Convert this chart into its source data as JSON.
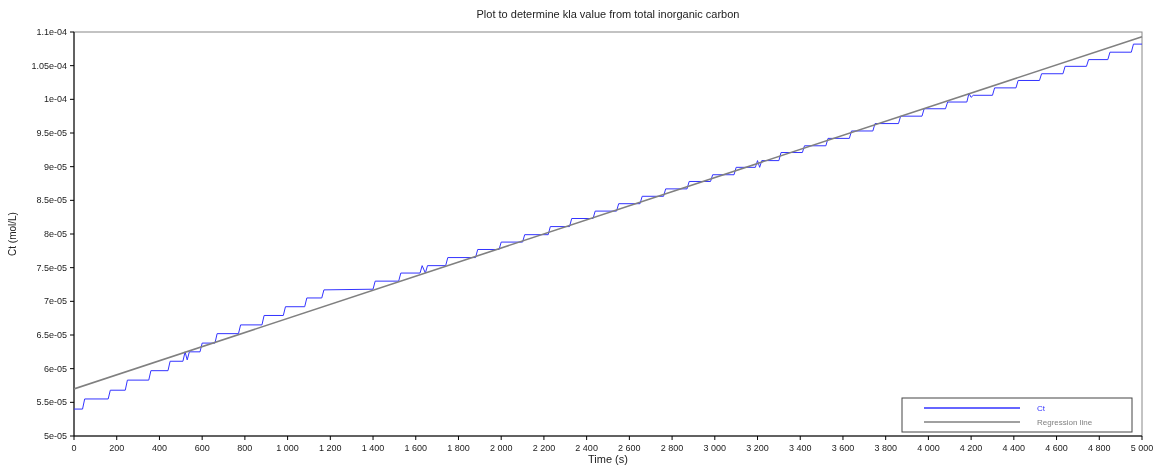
{
  "chart_data": {
    "type": "line",
    "title": "Plot to determine kla value from total inorganic carbon",
    "xlabel": "Time (s)",
    "ylabel": "Ct (mol/L)",
    "xlim": [
      0,
      5000
    ],
    "ylim": [
      5e-05,
      0.00011
    ],
    "xticks": [
      0,
      200,
      400,
      600,
      800,
      {
        "value": 1000,
        "label": "1 000"
      },
      {
        "value": 1200,
        "label": "1 200"
      },
      {
        "value": 1400,
        "label": "1 400"
      },
      {
        "value": 1600,
        "label": "1 600"
      },
      {
        "value": 1800,
        "label": "1 800"
      },
      {
        "value": 2000,
        "label": "2 000"
      },
      {
        "value": 2200,
        "label": "2 200"
      },
      {
        "value": 2400,
        "label": "2 400"
      },
      {
        "value": 2600,
        "label": "2 600"
      },
      {
        "value": 2800,
        "label": "2 800"
      },
      {
        "value": 3000,
        "label": "3 000"
      },
      {
        "value": 3200,
        "label": "3 200"
      },
      {
        "value": 3400,
        "label": "3 400"
      },
      {
        "value": 3600,
        "label": "3 600"
      },
      {
        "value": 3800,
        "label": "3 800"
      },
      {
        "value": 4000,
        "label": "4 000"
      },
      {
        "value": 4200,
        "label": "4 200"
      },
      {
        "value": 4400,
        "label": "4 400"
      },
      {
        "value": 4600,
        "label": "4 600"
      },
      {
        "value": 4800,
        "label": "4 800"
      },
      {
        "value": 5000,
        "label": "5 000"
      }
    ],
    "yticks": [
      {
        "value": 5e-05,
        "label": "5e-05"
      },
      {
        "value": 5.5e-05,
        "label": "5.5e-05"
      },
      {
        "value": 6e-05,
        "label": "6e-05"
      },
      {
        "value": 6.5e-05,
        "label": "6.5e-05"
      },
      {
        "value": 7e-05,
        "label": "7e-05"
      },
      {
        "value": 7.5e-05,
        "label": "7.5e-05"
      },
      {
        "value": 8e-05,
        "label": "8e-05"
      },
      {
        "value": 8.5e-05,
        "label": "8.5e-05"
      },
      {
        "value": 9e-05,
        "label": "9e-05"
      },
      {
        "value": 9.5e-05,
        "label": "9.5e-05"
      },
      {
        "value": 0.0001,
        "label": "1e-04"
      },
      {
        "value": 0.000105,
        "label": "1.05e-04"
      },
      {
        "value": 0.00011,
        "label": "1.1e-04"
      }
    ],
    "legend": "bottom right",
    "grid": false,
    "series": [
      {
        "name": "Ct",
        "color": "#3333ff",
        "x": [
          0,
          40,
          50,
          160,
          170,
          240,
          250,
          350,
          360,
          440,
          450,
          510,
          520,
          530,
          540,
          590,
          600,
          660,
          670,
          770,
          780,
          880,
          890,
          980,
          990,
          1080,
          1090,
          1160,
          1170,
          1400,
          1410,
          1520,
          1530,
          1620,
          1630,
          1645,
          1655,
          1740,
          1750,
          1880,
          1890,
          1990,
          2000,
          2100,
          2110,
          2220,
          2230,
          2320,
          2330,
          2430,
          2440,
          2540,
          2550,
          2650,
          2660,
          2760,
          2770,
          2870,
          2880,
          2980,
          2990,
          3090,
          3100,
          3190,
          3200,
          3210,
          3220,
          3300,
          3310,
          3410,
          3420,
          3520,
          3530,
          3630,
          3640,
          3740,
          3750,
          3860,
          3870,
          3970,
          3980,
          4080,
          4090,
          4180,
          4190,
          4200,
          4210,
          4300,
          4310,
          4410,
          4420,
          4520,
          4530,
          4630,
          4640,
          4740,
          4750,
          4840,
          4850,
          4950,
          4960,
          5000
        ],
        "values": [
          5.4e-05,
          5.4e-05,
          5.55e-05,
          5.55e-05,
          5.68e-05,
          5.68e-05,
          5.83e-05,
          5.83e-05,
          5.97e-05,
          5.97e-05,
          6.11e-05,
          6.11e-05,
          6.25e-05,
          6.13e-05,
          6.25e-05,
          6.25e-05,
          6.38e-05,
          6.38e-05,
          6.52e-05,
          6.52e-05,
          6.65e-05,
          6.65e-05,
          6.79e-05,
          6.79e-05,
          6.92e-05,
          6.92e-05,
          7.05e-05,
          7.05e-05,
          7.17e-05,
          7.18e-05,
          7.3e-05,
          7.3e-05,
          7.42e-05,
          7.42e-05,
          7.53e-05,
          7.42e-05,
          7.53e-05,
          7.53e-05,
          7.65e-05,
          7.65e-05,
          7.77e-05,
          7.77e-05,
          7.88e-05,
          7.88e-05,
          7.99e-05,
          7.99e-05,
          8.11e-05,
          8.11e-05,
          8.23e-05,
          8.23e-05,
          8.34e-05,
          8.34e-05,
          8.45e-05,
          8.45e-05,
          8.56e-05,
          8.56e-05,
          8.67e-05,
          8.67e-05,
          8.78e-05,
          8.78e-05,
          8.88e-05,
          8.88e-05,
          8.99e-05,
          8.99e-05,
          9.09e-05,
          8.99e-05,
          9.09e-05,
          9.09e-05,
          9.21e-05,
          9.21e-05,
          9.31e-05,
          9.31e-05,
          9.42e-05,
          9.42e-05,
          9.53e-05,
          9.53e-05,
          9.64e-05,
          9.64e-05,
          9.75e-05,
          9.75e-05,
          9.86e-05,
          9.86e-05,
          9.96e-05,
          9.96e-05,
          0.0001009,
          0.0001003,
          0.0001006,
          0.0001006,
          0.0001017,
          0.0001017,
          0.0001028,
          0.0001028,
          0.0001038,
          0.0001038,
          0.0001049,
          0.0001049,
          0.0001059,
          0.0001059,
          0.000107,
          0.000107,
          0.0001082,
          0.0001082
        ]
      },
      {
        "name": "Regression line",
        "color": "#808080",
        "x": [
          0,
          5000
        ],
        "values": [
          5.7e-05,
          0.0001093
        ]
      }
    ]
  }
}
